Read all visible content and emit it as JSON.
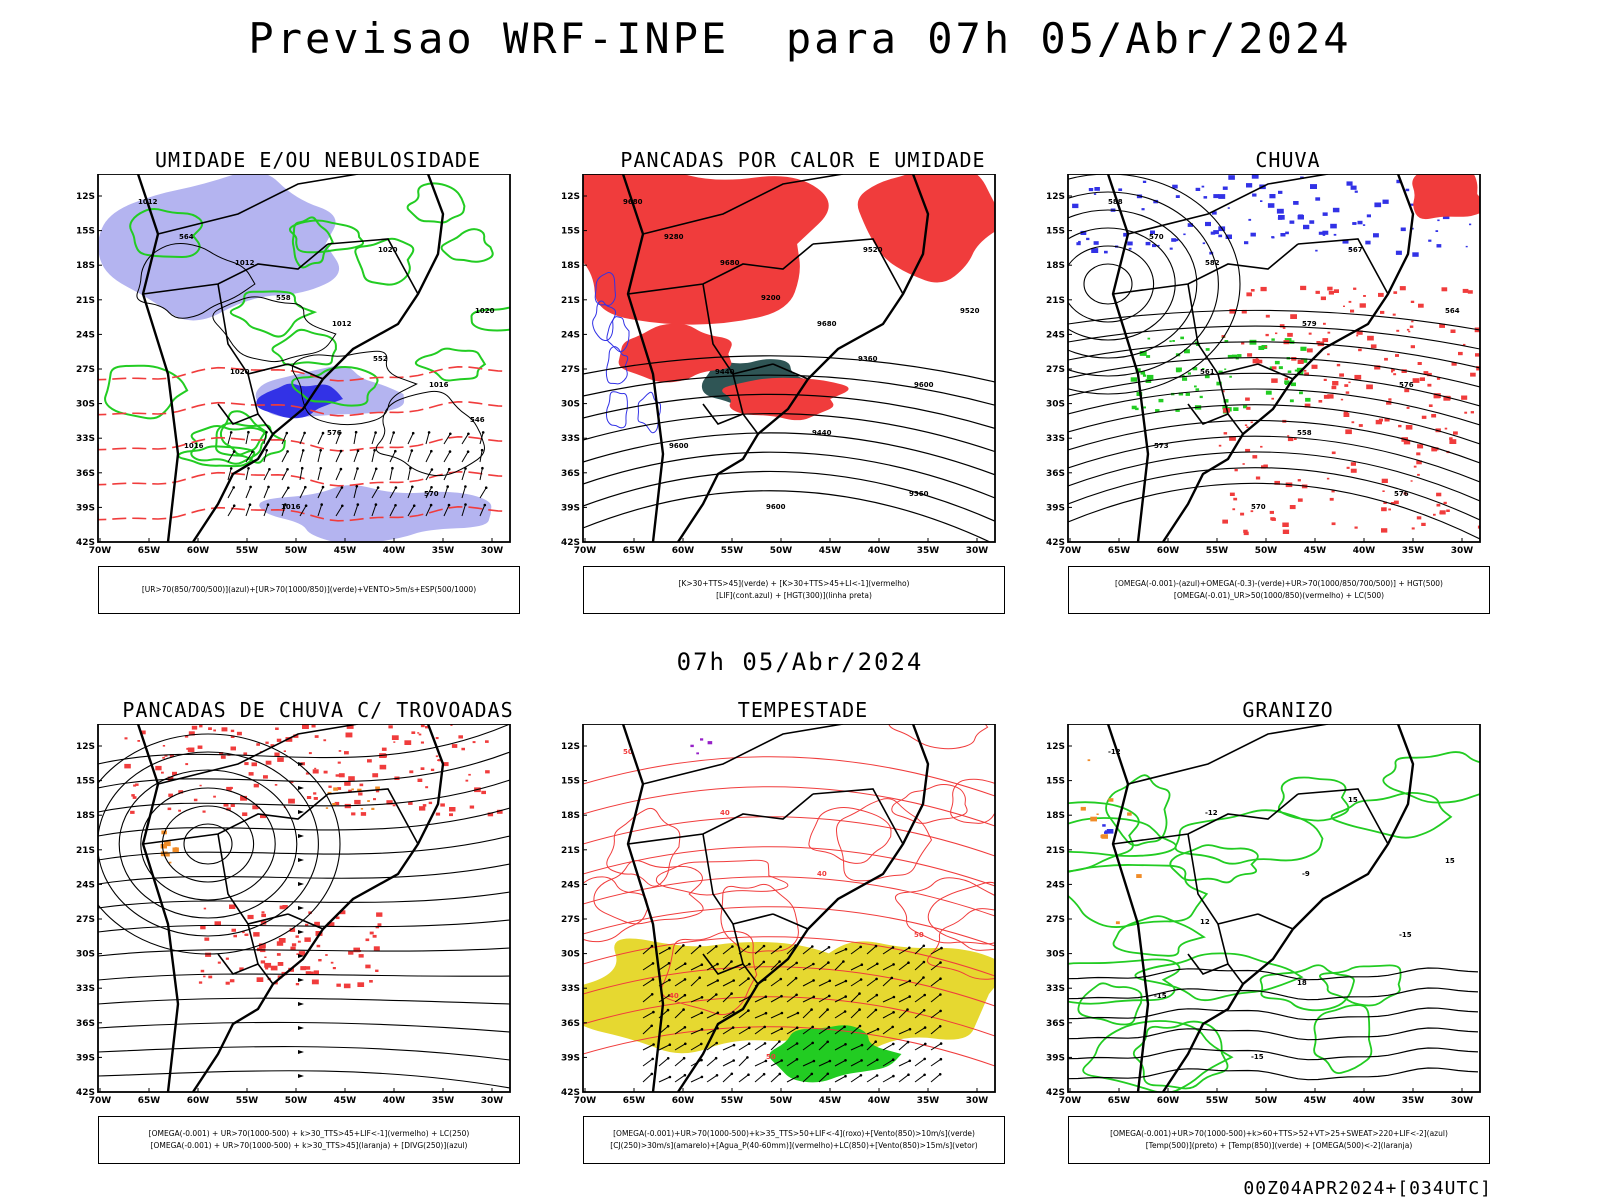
{
  "title": "Previsao WRF-INPE  para 07h 05/Abr/2024",
  "mid_time": "07h 05/Abr/2024",
  "footer": "00Z04APR2024+[034UTC]",
  "lat_labels": [
    "12S",
    "15S",
    "18S",
    "21S",
    "24S",
    "27S",
    "30S",
    "33S",
    "36S",
    "39S",
    "42S"
  ],
  "lon_labels": [
    "70W",
    "65W",
    "60W",
    "55W",
    "50W",
    "45W",
    "40W",
    "35W",
    "30W"
  ],
  "panels": [
    {
      "title": "UMIDADE E/OU NEBULOSIDADE",
      "legend": [
        "[UR>70(850/700/500)](azul)+[UR>70(1000/850)](verde)+VENTO>5m/s+ESP(500/1000)"
      ],
      "contour_labels": [
        "1012",
        "1012",
        "1012",
        "1016",
        "1016",
        "1016",
        "1020",
        "1020",
        "1020",
        "576",
        "570",
        "564",
        "558",
        "552",
        "546"
      ]
    },
    {
      "title": "PANCADAS POR CALOR E UMIDADE",
      "legend": [
        "[K>30+TTS>45](verde) + [K>30+TTS>45+LI<-1](vermelho)",
        "[LIF](cont.azul) + [HGT(300)](linha preta)"
      ],
      "contour_labels": [
        "9680",
        "9680",
        "9680",
        "9600",
        "9600",
        "9600",
        "9520",
        "9520",
        "9440",
        "9440",
        "9360",
        "9280",
        "9200",
        "9360"
      ]
    },
    {
      "title": "CHUVA",
      "legend": [
        "[OMEGA(-0.001)-(azul)+OMEGA(-0.3)-(verde)+UR>70(1000/850/700/500)] + HGT(500)",
        "[OMEGA(-0.01)_UR>50(1000/850)(vermelho) + LC(500)"
      ],
      "contour_labels": [
        "588",
        "582",
        "579",
        "576",
        "573",
        "570",
        "567",
        "564",
        "561",
        "558",
        "576",
        "570"
      ]
    },
    {
      "title": "PANCADAS DE CHUVA C/ TROVOADAS",
      "legend": [
        "[OMEGA(-0.001) + UR>70(1000-500) + k>30_TTS>45+LIF<-1](vermelho) + LC(250)",
        "[OMEGA(-0.001) + UR>70(1000-500) + k>30_TTS>45](laranja) + [DIVG(250)](azul)"
      ],
      "contour_labels": []
    },
    {
      "title": "TEMPESTADE",
      "legend": [
        "[OMEGA(-0.001)+UR>70(1000-500)+k>35_TTS>50+LIF<-4](roxo)+[Vento(850)>10m/s](verde)",
        "[CJ(250)>30m/s](amarelo)+[Agua_P(40-60mm)](vermelho)+LC(850)+[Vento(850)>15m/s](vetor)"
      ],
      "contour_labels": [
        "50",
        "40",
        "40",
        "50",
        "40",
        "50"
      ]
    },
    {
      "title": "GRANIZO",
      "legend": [
        "[OMEGA(-0.001)+UR>70(1000-500)+k>60+TTS>52+VT>25+SWEAT>220+LIF<-2](azul)",
        "[Temp(500)](preto) + [Temp(850)](verde) + [OMEGA(500)<-2](laranja)"
      ],
      "contour_labels": [
        "-12",
        "-12",
        "-9",
        "-15",
        "-15",
        "-15",
        "15",
        "15",
        "12",
        "18"
      ]
    }
  ],
  "colors": {
    "blue_light": "#b4b4f0",
    "blue": "#3232e6",
    "green": "#22cc22",
    "red": "#f03c3c",
    "dark_teal": "#2f5555",
    "yellow": "#e6d830",
    "orange": "#f08c28",
    "purple": "#9620c8",
    "black": "#000000"
  }
}
